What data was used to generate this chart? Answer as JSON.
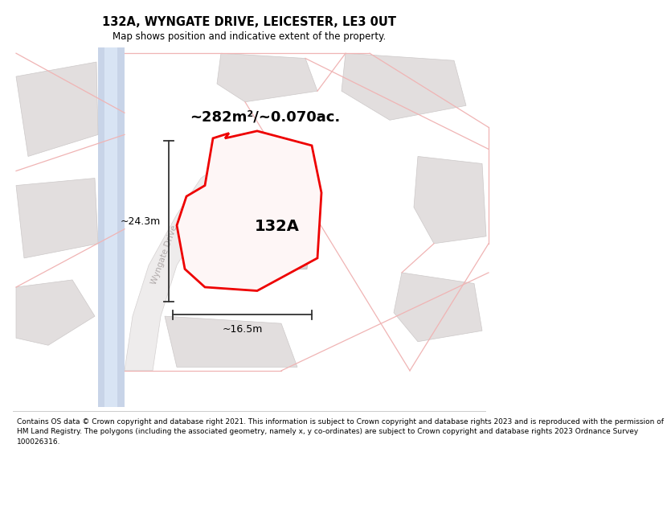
{
  "title": "132A, WYNGATE DRIVE, LEICESTER, LE3 0UT",
  "subtitle": "Map shows position and indicative extent of the property.",
  "area_label": "~282m²/~0.070ac.",
  "plot_label": "132A",
  "dim_height": "~24.3m",
  "dim_width": "~16.5m",
  "road_label": "Wyngate Drive",
  "footer": "Contains OS data © Crown copyright and database right 2021. This information is subject to Crown copyright and database rights 2023 and is reproduced with the permission of\nHM Land Registry. The polygons (including the associated geometry, namely x, y co-ordinates) are subject to Crown copyright and database rights 2023 Ordnance Survey\n100026316.",
  "title_fontsize": 10.5,
  "subtitle_fontsize": 8.5,
  "area_fontsize": 13,
  "plot_fontsize": 14,
  "dim_fontsize": 9,
  "road_fontsize": 7.5,
  "footer_fontsize": 6.5,
  "bg_white": "#ffffff",
  "bg_light": "#f5f0f0",
  "neighbor_fill": "#e2dede",
  "neighbor_edge": "#ccc8c8",
  "building_fill": "#d8d4d4",
  "building_edge": "#c0bcbc",
  "road_fill": "#eeecec",
  "road_edge": "#d4d0d0",
  "road_blue_fill": "#c8d4e8",
  "road_blue_light": "#d8e4f4",
  "faint_pink": "#f0b4b4",
  "highlight_red": "#ee0000",
  "dim_color": "#333333",
  "road_label_color": "#b0aaaa"
}
